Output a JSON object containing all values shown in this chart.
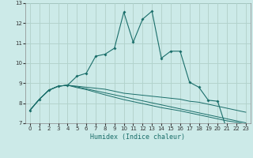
{
  "xlabel": "Humidex (Indice chaleur)",
  "xlim": [
    -0.5,
    23.5
  ],
  "ylim": [
    7,
    13
  ],
  "xticks": [
    0,
    1,
    2,
    3,
    4,
    5,
    6,
    7,
    8,
    9,
    10,
    11,
    12,
    13,
    14,
    15,
    16,
    17,
    18,
    19,
    20,
    21,
    22,
    23
  ],
  "yticks": [
    7,
    8,
    9,
    10,
    11,
    12,
    13
  ],
  "bg_color": "#cceae8",
  "grid_minor_color": "#e8c8c8",
  "grid_major_color": "#a8d8d0",
  "line_color": "#1a6e6a",
  "line1_x": [
    0,
    1,
    2,
    3,
    4,
    5,
    6,
    7,
    8,
    9,
    10,
    11,
    12,
    13,
    14,
    15,
    16,
    17,
    18,
    19,
    20,
    21,
    22,
    23
  ],
  "line1_y": [
    7.65,
    8.2,
    8.65,
    8.85,
    8.9,
    9.35,
    9.5,
    10.35,
    10.45,
    10.75,
    12.55,
    11.05,
    12.2,
    12.6,
    10.25,
    10.6,
    10.6,
    9.05,
    8.8,
    8.15,
    8.1,
    6.65,
    6.9,
    6.85
  ],
  "line2_x": [
    0,
    1,
    2,
    3,
    4,
    5,
    6,
    7,
    8,
    9,
    10,
    11,
    12,
    13,
    14,
    15,
    16,
    17,
    18,
    19,
    20,
    21,
    22,
    23
  ],
  "line2_y": [
    7.65,
    8.2,
    8.65,
    8.85,
    8.9,
    8.85,
    8.8,
    8.75,
    8.7,
    8.6,
    8.5,
    8.45,
    8.4,
    8.35,
    8.3,
    8.25,
    8.2,
    8.1,
    8.05,
    7.95,
    7.85,
    7.75,
    7.65,
    7.55
  ],
  "line3_x": [
    0,
    1,
    2,
    3,
    4,
    5,
    6,
    7,
    8,
    9,
    10,
    11,
    12,
    13,
    14,
    15,
    16,
    17,
    18,
    19,
    20,
    21,
    22,
    23
  ],
  "line3_y": [
    7.65,
    8.2,
    8.65,
    8.85,
    8.9,
    8.78,
    8.68,
    8.55,
    8.42,
    8.3,
    8.18,
    8.08,
    7.98,
    7.88,
    7.78,
    7.7,
    7.62,
    7.52,
    7.42,
    7.32,
    7.22,
    7.12,
    7.05,
    6.95
  ],
  "line4_x": [
    0,
    1,
    2,
    3,
    4,
    5,
    6,
    7,
    8,
    9,
    10,
    11,
    12,
    13,
    14,
    15,
    16,
    17,
    18,
    19,
    20,
    21,
    22,
    23
  ],
  "line4_y": [
    7.65,
    8.2,
    8.65,
    8.85,
    8.9,
    8.82,
    8.72,
    8.62,
    8.52,
    8.42,
    8.32,
    8.22,
    8.12,
    8.02,
    7.92,
    7.82,
    7.72,
    7.62,
    7.52,
    7.42,
    7.32,
    7.22,
    7.12,
    7.02
  ]
}
